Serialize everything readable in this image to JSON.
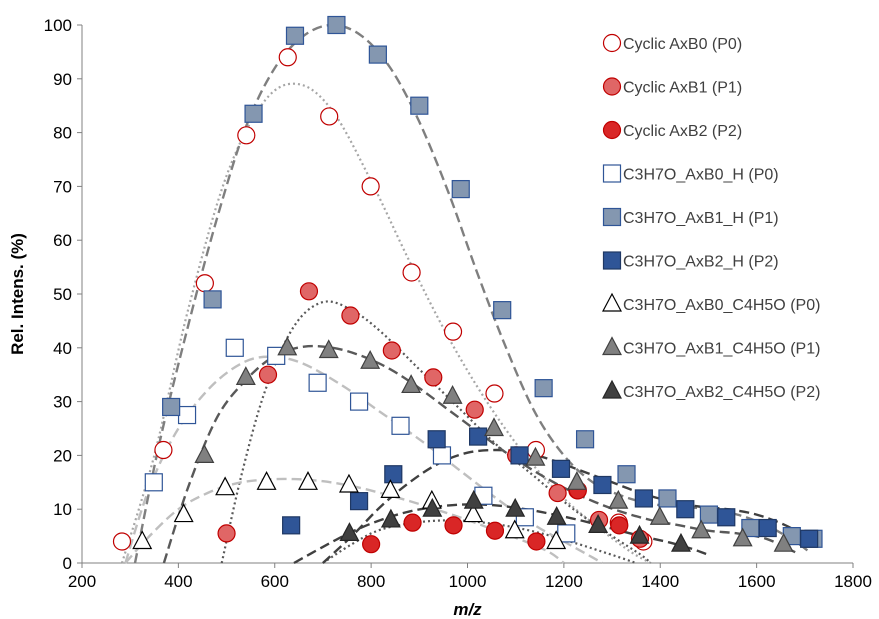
{
  "chart_data": {
    "type": "scatter",
    "xlabel": "m/z",
    "ylabel": "Rel. Intens. (%)",
    "xlim": [
      200,
      1800
    ],
    "ylim": [
      0,
      100
    ],
    "xticks": [
      200,
      400,
      600,
      800,
      1000,
      1200,
      1400,
      1600,
      1800
    ],
    "yticks": [
      0,
      10,
      20,
      30,
      40,
      50,
      60,
      70,
      80,
      90,
      100
    ],
    "grid": false,
    "legend_position": "right",
    "series": [
      {
        "name": "Cyclic AxB0 (P0)",
        "marker": "circle",
        "fill": "#ffffff",
        "stroke": "#c00000",
        "points": [
          [
            283,
            4
          ],
          [
            369,
            21
          ],
          [
            455,
            52
          ],
          [
            541,
            79.5
          ],
          [
            627,
            94
          ],
          [
            713,
            83
          ],
          [
            799,
            70
          ],
          [
            884,
            54
          ],
          [
            970,
            43
          ],
          [
            1056,
            31.5
          ],
          [
            1142,
            21
          ],
          [
            1228,
            13.5
          ],
          [
            1314,
            7.5
          ],
          [
            1365,
            4
          ]
        ],
        "trend": [
          [
            283,
            0
          ],
          [
            350,
            20
          ],
          [
            420,
            47
          ],
          [
            500,
            72
          ],
          [
            580,
            86
          ],
          [
            650,
            89
          ],
          [
            720,
            84
          ],
          [
            800,
            71
          ],
          [
            880,
            56
          ],
          [
            960,
            42
          ],
          [
            1040,
            30
          ],
          [
            1120,
            20
          ],
          [
            1200,
            12
          ],
          [
            1280,
            6
          ],
          [
            1340,
            2
          ],
          [
            1380,
            0
          ]
        ],
        "trend_color": "#a6a6a6",
        "trend_dash": "2,3"
      },
      {
        "name": "Cyclic AxB1 (P1)",
        "marker": "circle",
        "fill": "#e06666",
        "stroke": "#c00000",
        "points": [
          [
            500,
            5.5
          ],
          [
            586,
            35
          ],
          [
            671,
            50.5
          ],
          [
            757,
            46
          ],
          [
            843,
            39.5
          ],
          [
            929,
            34.5
          ],
          [
            1015,
            28.5
          ],
          [
            1101,
            20
          ],
          [
            1187,
            13
          ],
          [
            1273,
            8
          ],
          [
            1358,
            4.5
          ]
        ],
        "trend": [
          [
            490,
            0
          ],
          [
            530,
            16
          ],
          [
            580,
            32
          ],
          [
            640,
            44
          ],
          [
            700,
            48.5
          ],
          [
            760,
            47
          ],
          [
            820,
            43
          ],
          [
            900,
            36
          ],
          [
            980,
            29
          ],
          [
            1060,
            22
          ],
          [
            1140,
            16
          ],
          [
            1220,
            10
          ],
          [
            1300,
            5
          ],
          [
            1360,
            1.5
          ],
          [
            1380,
            0
          ]
        ],
        "trend_color": "#595959",
        "trend_dash": "2,3"
      },
      {
        "name": "Cyclic AxB2 (P2)",
        "marker": "circle",
        "fill": "#d92626",
        "stroke": "#c00000",
        "points": [
          [
            800,
            3.5
          ],
          [
            886,
            7.5
          ],
          [
            971,
            7
          ],
          [
            1057,
            6
          ],
          [
            1143,
            4
          ],
          [
            1229,
            13.5
          ],
          [
            1315,
            7
          ]
        ],
        "trend": [
          [
            700,
            0
          ],
          [
            760,
            3.5
          ],
          [
            820,
            6.2
          ],
          [
            900,
            7.6
          ],
          [
            980,
            7.9
          ],
          [
            1060,
            7.2
          ],
          [
            1140,
            5.8
          ],
          [
            1220,
            3.8
          ],
          [
            1300,
            1.5
          ],
          [
            1350,
            0
          ]
        ],
        "trend_color": "#595959",
        "trend_dash": "2,3"
      },
      {
        "name": "C3H7O_AxB0_H (P0)",
        "marker": "square",
        "fill": "#ffffff",
        "stroke": "#2f5597",
        "points": [
          [
            349,
            15
          ],
          [
            418,
            27.5
          ],
          [
            517,
            40
          ],
          [
            603,
            38.5
          ],
          [
            689,
            33.5
          ],
          [
            775,
            30
          ],
          [
            861,
            25.5
          ],
          [
            947,
            20
          ],
          [
            1033,
            12.5
          ],
          [
            1119,
            8.5
          ],
          [
            1205,
            5.5
          ]
        ],
        "trend": [
          [
            290,
            0
          ],
          [
            340,
            14
          ],
          [
            400,
            25
          ],
          [
            470,
            33
          ],
          [
            540,
            37.5
          ],
          [
            600,
            38.3
          ],
          [
            660,
            37
          ],
          [
            740,
            33
          ],
          [
            820,
            28
          ],
          [
            900,
            23
          ],
          [
            980,
            17.5
          ],
          [
            1060,
            12
          ],
          [
            1140,
            7
          ],
          [
            1200,
            4
          ],
          [
            1260,
            1
          ],
          [
            1280,
            0
          ]
        ],
        "trend_color": "#bfbfbf",
        "trend_dash": "10,5"
      },
      {
        "name": "C3H7O_AxB1_H (P1)",
        "marker": "square",
        "fill": "#8497b0",
        "stroke": "#2f5597",
        "points": [
          [
            385,
            29
          ],
          [
            471,
            49
          ],
          [
            556,
            83.5
          ],
          [
            642,
            98
          ],
          [
            728,
            100
          ],
          [
            814,
            94.5
          ],
          [
            900,
            85
          ],
          [
            986,
            69.5
          ],
          [
            1072,
            47
          ],
          [
            1158,
            32.5
          ],
          [
            1244,
            23
          ],
          [
            1330,
            16.5
          ],
          [
            1415,
            12
          ],
          [
            1501,
            9
          ],
          [
            1587,
            6.5
          ],
          [
            1673,
            5
          ],
          [
            1718,
            4.5
          ]
        ],
        "trend": [
          [
            310,
            0
          ],
          [
            360,
            22
          ],
          [
            420,
            44
          ],
          [
            480,
            64
          ],
          [
            540,
            81
          ],
          [
            600,
            92
          ],
          [
            660,
            98
          ],
          [
            720,
            100
          ],
          [
            780,
            98
          ],
          [
            840,
            92
          ],
          [
            900,
            82
          ],
          [
            960,
            69
          ],
          [
            1020,
            54
          ],
          [
            1080,
            40
          ],
          [
            1140,
            28
          ],
          [
            1200,
            20
          ],
          [
            1260,
            15
          ],
          [
            1320,
            12.5
          ],
          [
            1380,
            11
          ],
          [
            1440,
            10.5
          ],
          [
            1500,
            10
          ],
          [
            1560,
            9
          ],
          [
            1620,
            7
          ],
          [
            1680,
            4
          ],
          [
            1710,
            2
          ]
        ],
        "trend_color": "#7f7f7f",
        "trend_dash": "10,5"
      },
      {
        "name": "C3H7O_AxB2_H (P2)",
        "marker": "square",
        "fill": "#2f5597",
        "stroke": "#1f3864",
        "points": [
          [
            634,
            7
          ],
          [
            775,
            11.5
          ],
          [
            846,
            16.5
          ],
          [
            936,
            23
          ],
          [
            1022,
            23.5
          ],
          [
            1108,
            20
          ],
          [
            1194,
            17.5
          ],
          [
            1280,
            14.5
          ],
          [
            1366,
            12
          ],
          [
            1452,
            10
          ],
          [
            1537,
            8.5
          ],
          [
            1623,
            6.5
          ],
          [
            1709,
            4.5
          ]
        ],
        "trend": [
          [
            700,
            0
          ],
          [
            760,
            5
          ],
          [
            820,
            10.5
          ],
          [
            880,
            15
          ],
          [
            940,
            18.5
          ],
          [
            1000,
            20.5
          ],
          [
            1060,
            21
          ],
          [
            1120,
            20.5
          ],
          [
            1180,
            19
          ],
          [
            1240,
            17
          ],
          [
            1300,
            15
          ],
          [
            1360,
            13
          ],
          [
            1420,
            11.5
          ],
          [
            1480,
            10.5
          ],
          [
            1540,
            10
          ],
          [
            1600,
            9
          ],
          [
            1660,
            7
          ],
          [
            1710,
            4.5
          ]
        ],
        "trend_color": "#404040",
        "trend_dash": "10,5"
      },
      {
        "name": "C3H7O_AxB0_C4H5O (P0)",
        "marker": "triangle",
        "fill": "#ffffff",
        "stroke": "#000000",
        "points": [
          [
            325,
            4
          ],
          [
            411,
            9
          ],
          [
            497,
            14
          ],
          [
            583,
            15
          ],
          [
            669,
            15
          ],
          [
            754,
            14.5
          ],
          [
            840,
            13.5
          ],
          [
            926,
            11.5
          ],
          [
            1012,
            9
          ],
          [
            1098,
            6
          ],
          [
            1184,
            4
          ]
        ],
        "trend": [
          [
            290,
            0
          ],
          [
            340,
            5
          ],
          [
            400,
            10
          ],
          [
            460,
            13
          ],
          [
            520,
            14.8
          ],
          [
            580,
            15.5
          ],
          [
            640,
            15.6
          ],
          [
            700,
            15.2
          ],
          [
            760,
            14.3
          ],
          [
            820,
            13
          ],
          [
            880,
            11.5
          ],
          [
            940,
            9.8
          ],
          [
            1000,
            8
          ],
          [
            1060,
            6
          ],
          [
            1120,
            4
          ],
          [
            1170,
            2
          ],
          [
            1200,
            0
          ]
        ],
        "trend_color": "#bfbfbf",
        "trend_dash": "10,5"
      },
      {
        "name": "C3H7O_AxB1_C4H5O (P1)",
        "marker": "triangle",
        "fill": "#808080",
        "stroke": "#404040",
        "points": [
          [
            454,
            20
          ],
          [
            540,
            34.5
          ],
          [
            626,
            40
          ],
          [
            712,
            39.5
          ],
          [
            798,
            37.5
          ],
          [
            883,
            33
          ],
          [
            969,
            31
          ],
          [
            1055,
            25
          ],
          [
            1141,
            19.5
          ],
          [
            1227,
            15
          ],
          [
            1313,
            11.5
          ],
          [
            1399,
            8.5
          ],
          [
            1485,
            6
          ],
          [
            1571,
            4.5
          ],
          [
            1656,
            3.5
          ]
        ],
        "trend": [
          [
            370,
            0
          ],
          [
            420,
            14
          ],
          [
            480,
            27
          ],
          [
            540,
            34
          ],
          [
            600,
            38.5
          ],
          [
            660,
            40.2
          ],
          [
            720,
            40
          ],
          [
            780,
            38.5
          ],
          [
            840,
            36
          ],
          [
            900,
            32.5
          ],
          [
            960,
            28.5
          ],
          [
            1020,
            24.5
          ],
          [
            1080,
            20.5
          ],
          [
            1140,
            17
          ],
          [
            1200,
            14
          ],
          [
            1260,
            11.5
          ],
          [
            1320,
            9.5
          ],
          [
            1380,
            8
          ],
          [
            1440,
            7
          ],
          [
            1500,
            6
          ],
          [
            1560,
            5.5
          ],
          [
            1620,
            4.5
          ],
          [
            1680,
            2
          ]
        ],
        "trend_color": "#595959",
        "trend_dash": "10,5"
      },
      {
        "name": "C3H7O_AxB2_C4H5O (P2)",
        "marker": "triangle",
        "fill": "#404040",
        "stroke": "#262626",
        "points": [
          [
            755,
            5.5
          ],
          [
            841,
            8
          ],
          [
            927,
            10
          ],
          [
            1013,
            11.5
          ],
          [
            1099,
            10
          ],
          [
            1185,
            8.5
          ],
          [
            1271,
            7
          ],
          [
            1357,
            5
          ],
          [
            1443,
            3.5
          ]
        ],
        "trend": [
          [
            640,
            0
          ],
          [
            700,
            3
          ],
          [
            760,
            5.8
          ],
          [
            820,
            8
          ],
          [
            880,
            9.6
          ],
          [
            940,
            10.5
          ],
          [
            1000,
            10.9
          ],
          [
            1060,
            10.7
          ],
          [
            1120,
            10
          ],
          [
            1180,
            9
          ],
          [
            1240,
            7.8
          ],
          [
            1300,
            6.4
          ],
          [
            1360,
            5
          ],
          [
            1420,
            3.8
          ],
          [
            1470,
            2.5
          ],
          [
            1500,
            1.5
          ]
        ],
        "trend_color": "#404040",
        "trend_dash": "10,5"
      }
    ]
  }
}
